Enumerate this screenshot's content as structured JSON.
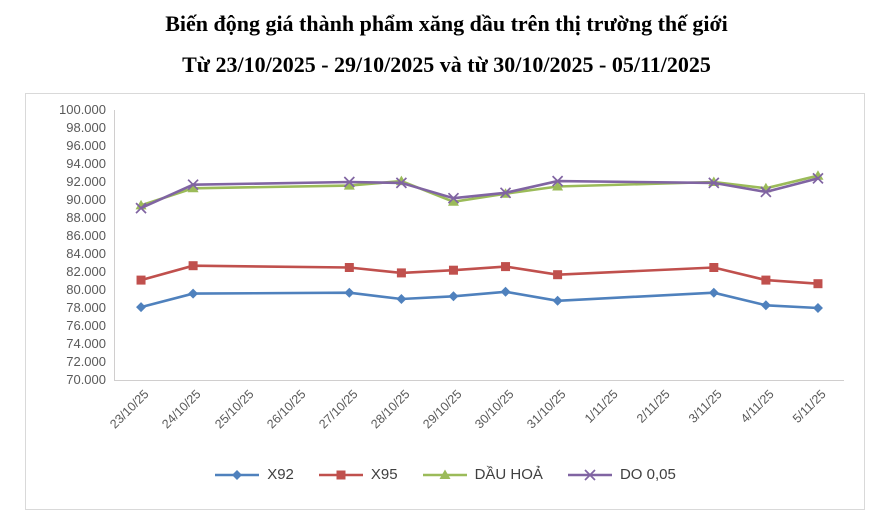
{
  "title": {
    "line1": "Biến động giá thành phẩm xăng dầu trên thị trường thế giới",
    "line2": "Từ 23/10/2025 - 29/10/2025 và từ 30/10/2025 - 05/11/2025"
  },
  "chart_data": {
    "type": "line",
    "title": "Biến động giá thành phẩm xăng dầu trên thị trường thế giới",
    "subtitle": "Từ 23/10/2025 - 29/10/2025 và từ 30/10/2025 - 05/11/2025",
    "categories": [
      "23/10/25",
      "24/10/25",
      "25/10/25",
      "26/10/25",
      "27/10/25",
      "28/10/25",
      "29/10/25",
      "30/10/25",
      "31/10/25",
      "1/11/25",
      "2/11/25",
      "3/11/25",
      "4/11/25",
      "5/11/25"
    ],
    "y_axis": {
      "min": 70000,
      "max": 100000,
      "step": 2000,
      "tick_labels": [
        "100.000",
        "98.000",
        "96.000",
        "94.000",
        "92.000",
        "90.000",
        "88.000",
        "86.000",
        "84.000",
        "82.000",
        "80.000",
        "78.000",
        "76.000",
        "74.000",
        "72.000",
        "70.000"
      ]
    },
    "grid": false,
    "legend_position": "bottom",
    "series": [
      {
        "name": "X92",
        "color": "#4F81BD",
        "marker": "diamond",
        "values": [
          78100,
          79600,
          null,
          null,
          79700,
          79000,
          79300,
          79800,
          78800,
          null,
          null,
          79700,
          78300,
          78000
        ]
      },
      {
        "name": "X95",
        "color": "#C0504D",
        "marker": "square",
        "values": [
          81100,
          82700,
          null,
          null,
          82500,
          81900,
          82200,
          82600,
          81700,
          null,
          null,
          82500,
          81100,
          80700
        ]
      },
      {
        "name": "DẦU HOẢ",
        "color": "#9BBB59",
        "marker": "triangle",
        "values": [
          89400,
          91300,
          null,
          null,
          91600,
          92100,
          89800,
          90700,
          91500,
          null,
          null,
          92000,
          91300,
          92700
        ]
      },
      {
        "name": "DO 0,05",
        "color": "#8064A2",
        "marker": "x",
        "values": [
          89100,
          91700,
          null,
          null,
          92000,
          91900,
          90200,
          90800,
          92100,
          null,
          null,
          91900,
          90900,
          92400
        ]
      }
    ]
  }
}
